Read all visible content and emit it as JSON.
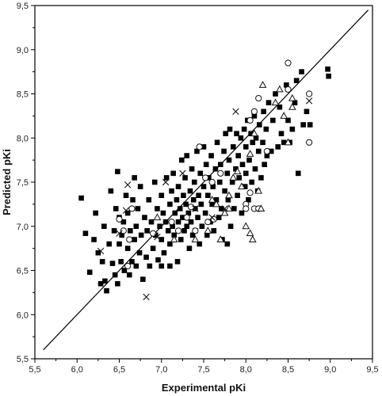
{
  "chart_data": {
    "type": "scatter",
    "title": "",
    "xlabel": "Experimental pKi",
    "ylabel": "Predicted pKi",
    "xlim": [
      5.5,
      9.5
    ],
    "ylim": [
      5.5,
      9.5
    ],
    "grid": false,
    "legend": "none",
    "x_ticks": [
      "5,5",
      "6,0",
      "6,5",
      "7,0",
      "7,5",
      "8,0",
      "8,5",
      "9,0",
      "9,5"
    ],
    "y_ticks": [
      "5,5",
      "6,0",
      "6,5",
      "7,0",
      "7,5",
      "8,0",
      "8,5",
      "9,0",
      "9,5"
    ],
    "identity_line": [
      [
        5.6,
        5.6
      ],
      [
        9.45,
        9.45
      ]
    ],
    "colors": {
      "filled_square": "#000000",
      "open_marker": "#111111",
      "line": "#000000"
    },
    "series": [
      {
        "marker": "filled-square",
        "points": [
          [
            6.1,
            6.92
          ],
          [
            6.15,
            6.48
          ],
          [
            6.2,
            6.85
          ],
          [
            6.25,
            6.7
          ],
          [
            6.28,
            6.35
          ],
          [
            6.3,
            6.6
          ],
          [
            6.32,
            7.0
          ],
          [
            6.33,
            6.38
          ],
          [
            6.35,
            6.27
          ],
          [
            6.38,
            6.8
          ],
          [
            6.4,
            7.4
          ],
          [
            6.42,
            6.58
          ],
          [
            6.44,
            6.95
          ],
          [
            6.45,
            6.45
          ],
          [
            6.46,
            7.2
          ],
          [
            6.48,
            6.35
          ],
          [
            6.5,
            6.8
          ],
          [
            6.5,
            7.1
          ],
          [
            6.52,
            6.6
          ],
          [
            6.53,
            6.9
          ],
          [
            6.55,
            7.05
          ],
          [
            6.56,
            6.5
          ],
          [
            6.58,
            7.35
          ],
          [
            6.6,
            6.75
          ],
          [
            6.6,
            7.15
          ],
          [
            6.62,
            6.45
          ],
          [
            6.63,
            6.95
          ],
          [
            6.65,
            6.6
          ],
          [
            6.66,
            7.3
          ],
          [
            6.68,
            6.85
          ],
          [
            6.7,
            7.0
          ],
          [
            6.7,
            6.55
          ],
          [
            6.72,
            7.2
          ],
          [
            6.74,
            6.7
          ],
          [
            6.75,
            7.45
          ],
          [
            6.76,
            6.9
          ],
          [
            6.78,
            6.4
          ],
          [
            6.8,
            7.1
          ],
          [
            6.82,
            6.65
          ],
          [
            6.83,
            6.95
          ],
          [
            6.85,
            7.3
          ],
          [
            6.86,
            6.55
          ],
          [
            6.88,
            7.05
          ],
          [
            6.9,
            6.75
          ],
          [
            6.92,
            7.5
          ],
          [
            6.93,
            6.9
          ],
          [
            6.95,
            7.2
          ],
          [
            6.96,
            6.62
          ],
          [
            6.98,
            7.0
          ],
          [
            7.0,
            7.35
          ],
          [
            7.0,
            6.85
          ],
          [
            7.02,
            7.15
          ],
          [
            7.03,
            6.7
          ],
          [
            7.05,
            7.05
          ],
          [
            7.06,
            7.55
          ],
          [
            7.08,
            6.95
          ],
          [
            7.1,
            7.25
          ],
          [
            7.1,
            6.8
          ],
          [
            7.12,
            7.4
          ],
          [
            7.13,
            7.0
          ],
          [
            7.14,
            7.6
          ],
          [
            7.15,
            6.9
          ],
          [
            7.16,
            7.15
          ],
          [
            7.18,
            7.3
          ],
          [
            7.19,
            6.6
          ],
          [
            7.2,
            7.45
          ],
          [
            7.2,
            7.05
          ],
          [
            7.22,
            7.2
          ],
          [
            7.23,
            6.85
          ],
          [
            7.24,
            7.75
          ],
          [
            7.25,
            7.1
          ],
          [
            7.26,
            7.35
          ],
          [
            7.27,
            6.95
          ],
          [
            7.28,
            7.55
          ],
          [
            7.29,
            7.25
          ],
          [
            7.3,
            7.0
          ],
          [
            7.3,
            7.8
          ],
          [
            7.32,
            7.15
          ],
          [
            7.33,
            6.75
          ],
          [
            7.34,
            7.4
          ],
          [
            7.35,
            7.05
          ],
          [
            7.36,
            7.65
          ],
          [
            7.37,
            6.9
          ],
          [
            7.38,
            7.3
          ],
          [
            7.39,
            7.5
          ],
          [
            7.4,
            7.2
          ],
          [
            7.4,
            6.95
          ],
          [
            7.42,
            7.85
          ],
          [
            7.43,
            7.1
          ],
          [
            7.44,
            7.35
          ],
          [
            7.45,
            6.8
          ],
          [
            7.46,
            7.6
          ],
          [
            7.47,
            7.25
          ],
          [
            7.48,
            7.0
          ],
          [
            7.5,
            7.45
          ],
          [
            7.5,
            7.9
          ],
          [
            7.52,
            7.15
          ],
          [
            7.53,
            7.7
          ],
          [
            7.54,
            6.9
          ],
          [
            7.55,
            7.35
          ],
          [
            7.56,
            7.55
          ],
          [
            7.58,
            7.05
          ],
          [
            7.59,
            7.8
          ],
          [
            7.6,
            7.25
          ],
          [
            7.61,
            7.45
          ],
          [
            7.62,
            6.95
          ],
          [
            7.64,
            7.65
          ],
          [
            7.65,
            7.3
          ],
          [
            7.66,
            7.95
          ],
          [
            7.68,
            7.1
          ],
          [
            7.69,
            7.5
          ],
          [
            7.7,
            7.7
          ],
          [
            7.71,
            7.2
          ],
          [
            7.72,
            6.85
          ],
          [
            7.74,
            7.85
          ],
          [
            7.75,
            7.4
          ],
          [
            7.76,
            8.05
          ],
          [
            7.78,
            7.6
          ],
          [
            7.79,
            7.3
          ],
          [
            7.8,
            7.75
          ],
          [
            7.81,
            8.1
          ],
          [
            7.82,
            7.0
          ],
          [
            7.84,
            7.5
          ],
          [
            7.85,
            7.9
          ],
          [
            7.86,
            7.2
          ],
          [
            7.88,
            7.65
          ],
          [
            7.89,
            8.05
          ],
          [
            7.9,
            7.35
          ],
          [
            7.91,
            7.8
          ],
          [
            7.92,
            7.55
          ],
          [
            7.94,
            8.0
          ],
          [
            7.95,
            7.15
          ],
          [
            7.96,
            7.7
          ],
          [
            7.98,
            8.1
          ],
          [
            7.99,
            7.45
          ],
          [
            8.0,
            7.9
          ],
          [
            8.0,
            7.6
          ],
          [
            8.02,
            8.2
          ],
          [
            8.03,
            7.3
          ],
          [
            8.04,
            7.75
          ],
          [
            8.06,
            8.05
          ],
          [
            8.07,
            7.5
          ],
          [
            8.08,
            7.95
          ],
          [
            8.1,
            8.25
          ],
          [
            8.11,
            7.65
          ],
          [
            8.12,
            8.0
          ],
          [
            8.14,
            7.4
          ],
          [
            8.15,
            7.85
          ],
          [
            8.16,
            8.15
          ],
          [
            8.18,
            7.55
          ],
          [
            8.2,
            7.95
          ],
          [
            8.21,
            8.3
          ],
          [
            8.22,
            7.7
          ],
          [
            8.24,
            8.1
          ],
          [
            8.25,
            7.8
          ],
          [
            8.27,
            8.4
          ],
          [
            8.3,
            7.85
          ],
          [
            8.32,
            8.2
          ],
          [
            8.35,
            8.5
          ],
          [
            8.38,
            7.9
          ],
          [
            8.4,
            8.35
          ],
          [
            8.42,
            8.05
          ],
          [
            8.45,
            7.95
          ],
          [
            8.48,
            8.6
          ],
          [
            8.5,
            8.2
          ],
          [
            8.52,
            7.95
          ],
          [
            8.55,
            8.1
          ],
          [
            8.58,
            8.4
          ],
          [
            8.6,
            8.65
          ],
          [
            8.62,
            7.6
          ],
          [
            8.66,
            8.75
          ],
          [
            8.68,
            8.15
          ],
          [
            8.72,
            8.3
          ],
          [
            8.76,
            8.15
          ],
          [
            8.97,
            8.78
          ],
          [
            8.98,
            8.7
          ],
          [
            6.05,
            7.32
          ],
          [
            6.22,
            7.15
          ],
          [
            6.48,
            7.62
          ],
          [
            6.68,
            7.55
          ],
          [
            7.78,
            6.8
          ],
          [
            7.0,
            6.55
          ],
          [
            7.1,
            6.55
          ]
        ]
      },
      {
        "marker": "open-circle",
        "points": [
          [
            6.5,
            7.08
          ],
          [
            6.55,
            6.95
          ],
          [
            6.6,
            6.55
          ],
          [
            6.62,
            6.85
          ],
          [
            6.65,
            7.2
          ],
          [
            6.9,
            6.92
          ],
          [
            7.12,
            7.05
          ],
          [
            7.2,
            6.95
          ],
          [
            7.3,
            7.1
          ],
          [
            7.35,
            7.22
          ],
          [
            7.4,
            6.95
          ],
          [
            7.55,
            7.05
          ],
          [
            7.62,
            7.08
          ],
          [
            7.45,
            7.9
          ],
          [
            7.52,
            7.55
          ],
          [
            7.6,
            7.5
          ],
          [
            7.7,
            7.6
          ],
          [
            8.0,
            7.25
          ],
          [
            8.05,
            7.38
          ],
          [
            8.1,
            7.2
          ],
          [
            8.15,
            7.2
          ],
          [
            8.1,
            8.3
          ],
          [
            8.15,
            8.45
          ],
          [
            8.05,
            8.2
          ],
          [
            8.25,
            7.85
          ],
          [
            8.5,
            8.85
          ],
          [
            8.5,
            8.55
          ],
          [
            8.75,
            8.5
          ],
          [
            8.75,
            7.95
          ],
          [
            8.0,
            7.2
          ]
        ]
      },
      {
        "marker": "open-triangle",
        "points": [
          [
            6.95,
            7.1
          ],
          [
            7.15,
            6.85
          ],
          [
            7.4,
            6.85
          ],
          [
            7.55,
            6.95
          ],
          [
            7.65,
            7.25
          ],
          [
            7.7,
            6.85
          ],
          [
            7.75,
            7.15
          ],
          [
            7.8,
            7.35
          ],
          [
            7.85,
            7.55
          ],
          [
            7.9,
            7.62
          ],
          [
            8.0,
            7.0
          ],
          [
            8.05,
            6.92
          ],
          [
            8.08,
            6.85
          ],
          [
            8.15,
            7.4
          ],
          [
            8.18,
            7.2
          ],
          [
            8.05,
            7.82
          ],
          [
            8.1,
            8.05
          ],
          [
            8.2,
            8.6
          ],
          [
            8.35,
            8.4
          ],
          [
            8.45,
            8.25
          ],
          [
            8.4,
            8.55
          ],
          [
            8.5,
            7.95
          ],
          [
            8.55,
            8.45
          ],
          [
            8.55,
            8.35
          ],
          [
            7.95,
            7.45
          ],
          [
            7.6,
            7.3
          ],
          [
            7.8,
            7.2
          ]
        ]
      },
      {
        "marker": "cross",
        "points": [
          [
            6.28,
            6.72
          ],
          [
            6.5,
            6.92
          ],
          [
            6.58,
            7.18
          ],
          [
            6.6,
            7.47
          ],
          [
            6.82,
            6.2
          ],
          [
            7.05,
            7.5
          ],
          [
            7.4,
            7.2
          ],
          [
            7.6,
            7.1
          ],
          [
            7.75,
            7.2
          ],
          [
            7.88,
            8.3
          ],
          [
            8.75,
            8.42
          ],
          [
            6.95,
            6.88
          ],
          [
            7.25,
            7.6
          ]
        ]
      }
    ]
  }
}
